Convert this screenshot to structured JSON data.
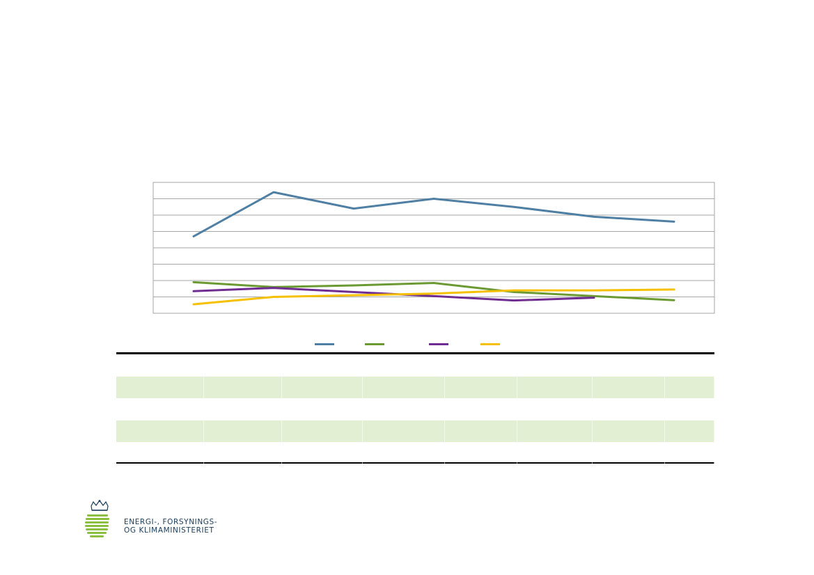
{
  "chart_data": {
    "type": "line",
    "x": [
      1,
      2,
      3,
      4,
      5,
      6,
      7
    ],
    "ylim": [
      0,
      8
    ],
    "grid": true,
    "legend_position": "bottom",
    "series": [
      {
        "color": "#4f7fa3",
        "values": [
          4.7,
          7.4,
          6.4,
          7.0,
          6.5,
          5.9,
          5.6
        ]
      },
      {
        "color": "#6b9a33",
        "values": [
          1.9,
          1.6,
          1.7,
          1.85,
          1.3,
          1.05,
          0.8
        ]
      },
      {
        "color": "#6f2d91",
        "values": [
          1.35,
          1.55,
          1.3,
          1.05,
          0.78,
          0.95,
          null
        ]
      },
      {
        "color": "#f5c000",
        "values": [
          0.55,
          1.0,
          1.1,
          1.2,
          1.4,
          1.4,
          1.45
        ]
      }
    ]
  },
  "table": {
    "row_count": 5,
    "shaded_rows": [
      1,
      3
    ],
    "shade_color": "#e3efd2"
  },
  "logo": {
    "line1": "ENERGI-, FORSYNINGS-",
    "line2": "OG KLIMAMINISTERIET",
    "color_green": "#8cbf3f",
    "color_blue": "#1a3c5a"
  }
}
